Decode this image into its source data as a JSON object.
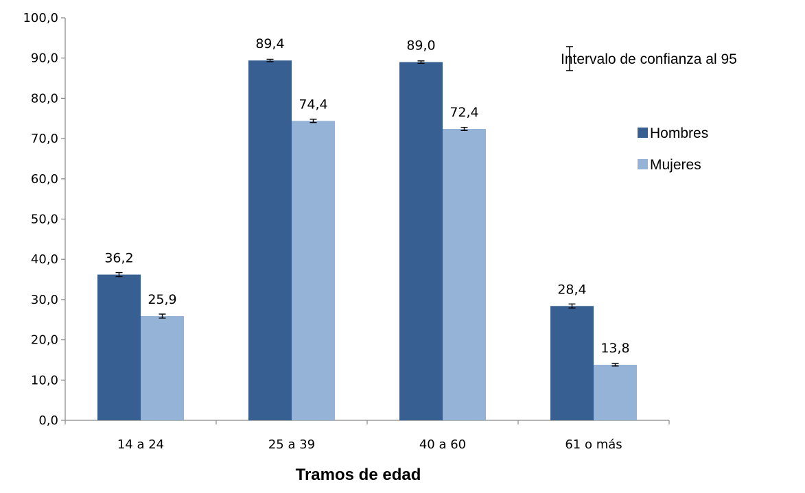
{
  "chart_data": {
    "type": "bar",
    "title": "",
    "xlabel": "Tramos de edad",
    "ylabel": "",
    "ylim": [
      0,
      100
    ],
    "yticks": [
      "0,0",
      "10,0",
      "20,0",
      "30,0",
      "40,0",
      "50,0",
      "60,0",
      "70,0",
      "80,0",
      "90,0",
      "100,0"
    ],
    "categories": [
      "14 a 24",
      "25 a 39",
      "40 a 60",
      "61 o más"
    ],
    "series": [
      {
        "name": "Hombres",
        "color": "#375F91",
        "values": [
          36.2,
          89.4,
          89.0,
          28.4
        ],
        "labels": [
          "36,2",
          "89,4",
          "89,0",
          "28,4"
        ],
        "error": [
          0.5,
          0.3,
          0.3,
          0.5
        ]
      },
      {
        "name": "Mujeres",
        "color": "#95B3D7",
        "values": [
          25.9,
          74.4,
          72.4,
          13.8
        ],
        "labels": [
          "25,9",
          "74,4",
          "72,4",
          "13,8"
        ],
        "error": [
          0.5,
          0.4,
          0.4,
          0.3
        ]
      }
    ],
    "error_bar_legend": "Intervalo de confianza al 95",
    "legend_position": "right",
    "grid": false
  }
}
